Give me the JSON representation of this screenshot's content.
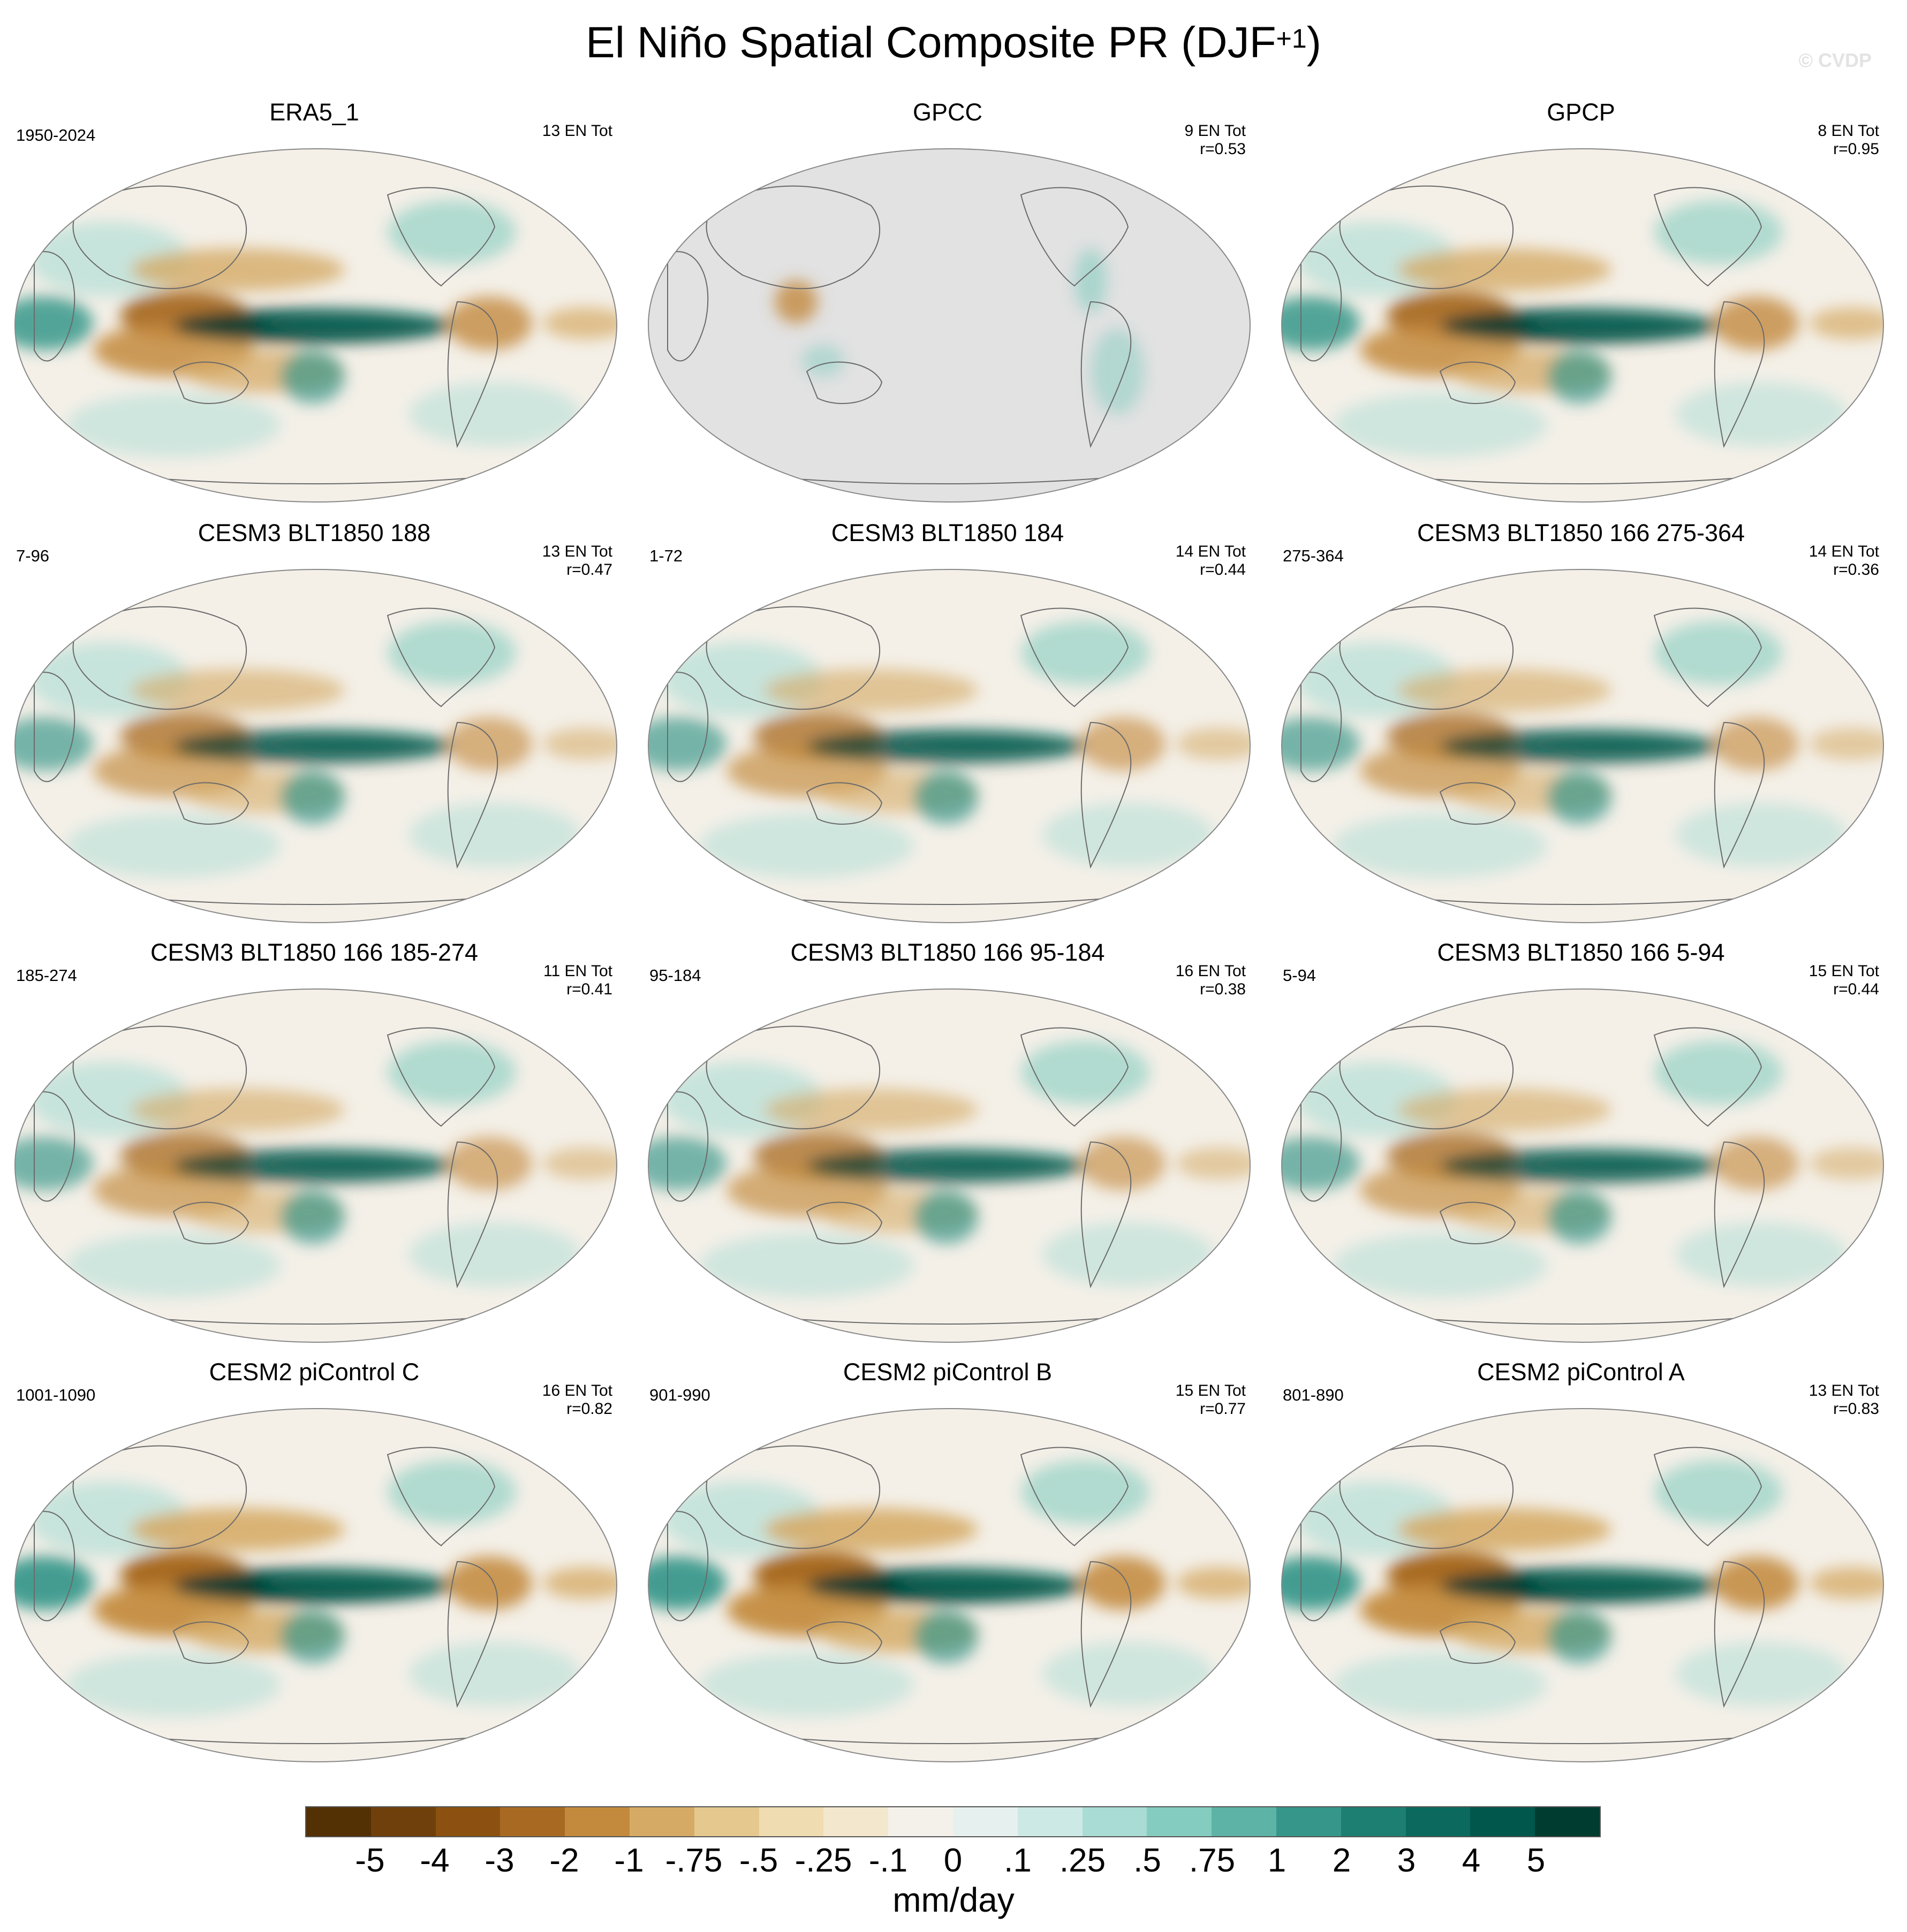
{
  "figure": {
    "title_main": "El Niño Spatial Composite PR (DJF",
    "title_sup": "+1",
    "title_close": ")",
    "watermark": "© CVDP"
  },
  "panels": [
    {
      "title": "ERA5_1",
      "period": "1950-2024",
      "count": "13 EN Tot",
      "corr": "",
      "land_masked": false,
      "strength": 1.0
    },
    {
      "title": "GPCC",
      "period": "",
      "count": "9 EN Tot",
      "corr": "r=0.53",
      "land_masked": true,
      "strength": 0.6
    },
    {
      "title": "GPCP",
      "period": "",
      "count": "8 EN Tot",
      "corr": "r=0.95",
      "land_masked": false,
      "strength": 1.0
    },
    {
      "title": "CESM3 BLT1850 188",
      "period": "7-96",
      "count": "13 EN Tot",
      "corr": "r=0.47",
      "land_masked": false,
      "strength": 0.8
    },
    {
      "title": "CESM3 BLT1850 184",
      "period": "1-72",
      "count": "14 EN Tot",
      "corr": "r=0.44",
      "land_masked": false,
      "strength": 0.8
    },
    {
      "title": "CESM3 BLT1850 166 275-364",
      "period": "275-364",
      "count": "14 EN Tot",
      "corr": "r=0.36",
      "land_masked": false,
      "strength": 0.8
    },
    {
      "title": "CESM3 BLT1850 166 185-274",
      "period": "185-274",
      "count": "11 EN Tot",
      "corr": "r=0.41",
      "land_masked": false,
      "strength": 0.8
    },
    {
      "title": "CESM3 BLT1850 166 95-184",
      "period": "95-184",
      "count": "16 EN Tot",
      "corr": "r=0.38",
      "land_masked": false,
      "strength": 0.8
    },
    {
      "title": "CESM3 BLT1850 166 5-94",
      "period": "5-94",
      "count": "15 EN Tot",
      "corr": "r=0.44",
      "land_masked": false,
      "strength": 0.8
    },
    {
      "title": "CESM2 piControl C",
      "period": "1001-1090",
      "count": "16 EN Tot",
      "corr": "r=0.82",
      "land_masked": false,
      "strength": 1.1
    },
    {
      "title": "CESM2 piControl B",
      "period": "901-990",
      "count": "15 EN Tot",
      "corr": "r=0.77",
      "land_masked": false,
      "strength": 1.1
    },
    {
      "title": "CESM2 piControl A",
      "period": "801-890",
      "count": "13 EN Tot",
      "corr": "r=0.83",
      "land_masked": false,
      "strength": 1.1
    }
  ],
  "colorbar": {
    "colors": [
      "#543005",
      "#6f400b",
      "#8c5110",
      "#a86a23",
      "#c38a3d",
      "#d5aa65",
      "#e4c88e",
      "#efdcb0",
      "#f3e7cd",
      "#f4f1ea",
      "#e6f1ef",
      "#cde9e5",
      "#a9dcd4",
      "#84ccc0",
      "#5db3a5",
      "#36968a",
      "#1d7f72",
      "#0b6a5d",
      "#01574b",
      "#003c30"
    ],
    "tick_labels": [
      "-5",
      "-4",
      "-3",
      "-2",
      "-1",
      "-.75",
      "-.5",
      "-.25",
      "-.1",
      "0",
      ".1",
      ".25",
      ".5",
      ".75",
      "1",
      "2",
      "3",
      "4",
      "5"
    ],
    "units": "mm/day"
  }
}
